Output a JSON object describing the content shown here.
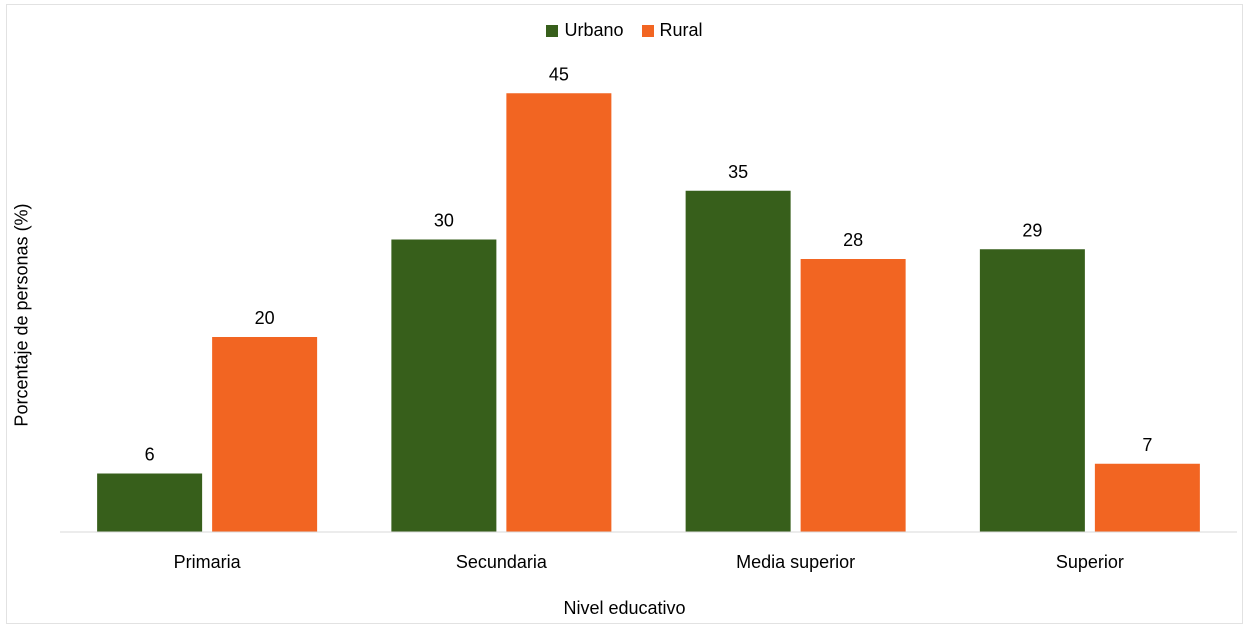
{
  "colors": {
    "urbano": "#375f1b",
    "rural": "#f26522",
    "axis": "#d9d9d9"
  },
  "chart_data": {
    "type": "bar",
    "categories": [
      "Primaria",
      "Secundaria",
      "Media superior",
      "Superior"
    ],
    "series": [
      {
        "name": "Urbano",
        "values": [
          6,
          30,
          35,
          29
        ]
      },
      {
        "name": "Rural",
        "values": [
          20,
          45,
          28,
          7
        ]
      }
    ],
    "xlabel": "Nivel educativo",
    "ylabel": "Porcentaje de personas (%)",
    "ylim": [
      0,
      50
    ],
    "grid": false,
    "legend": "top-center"
  }
}
